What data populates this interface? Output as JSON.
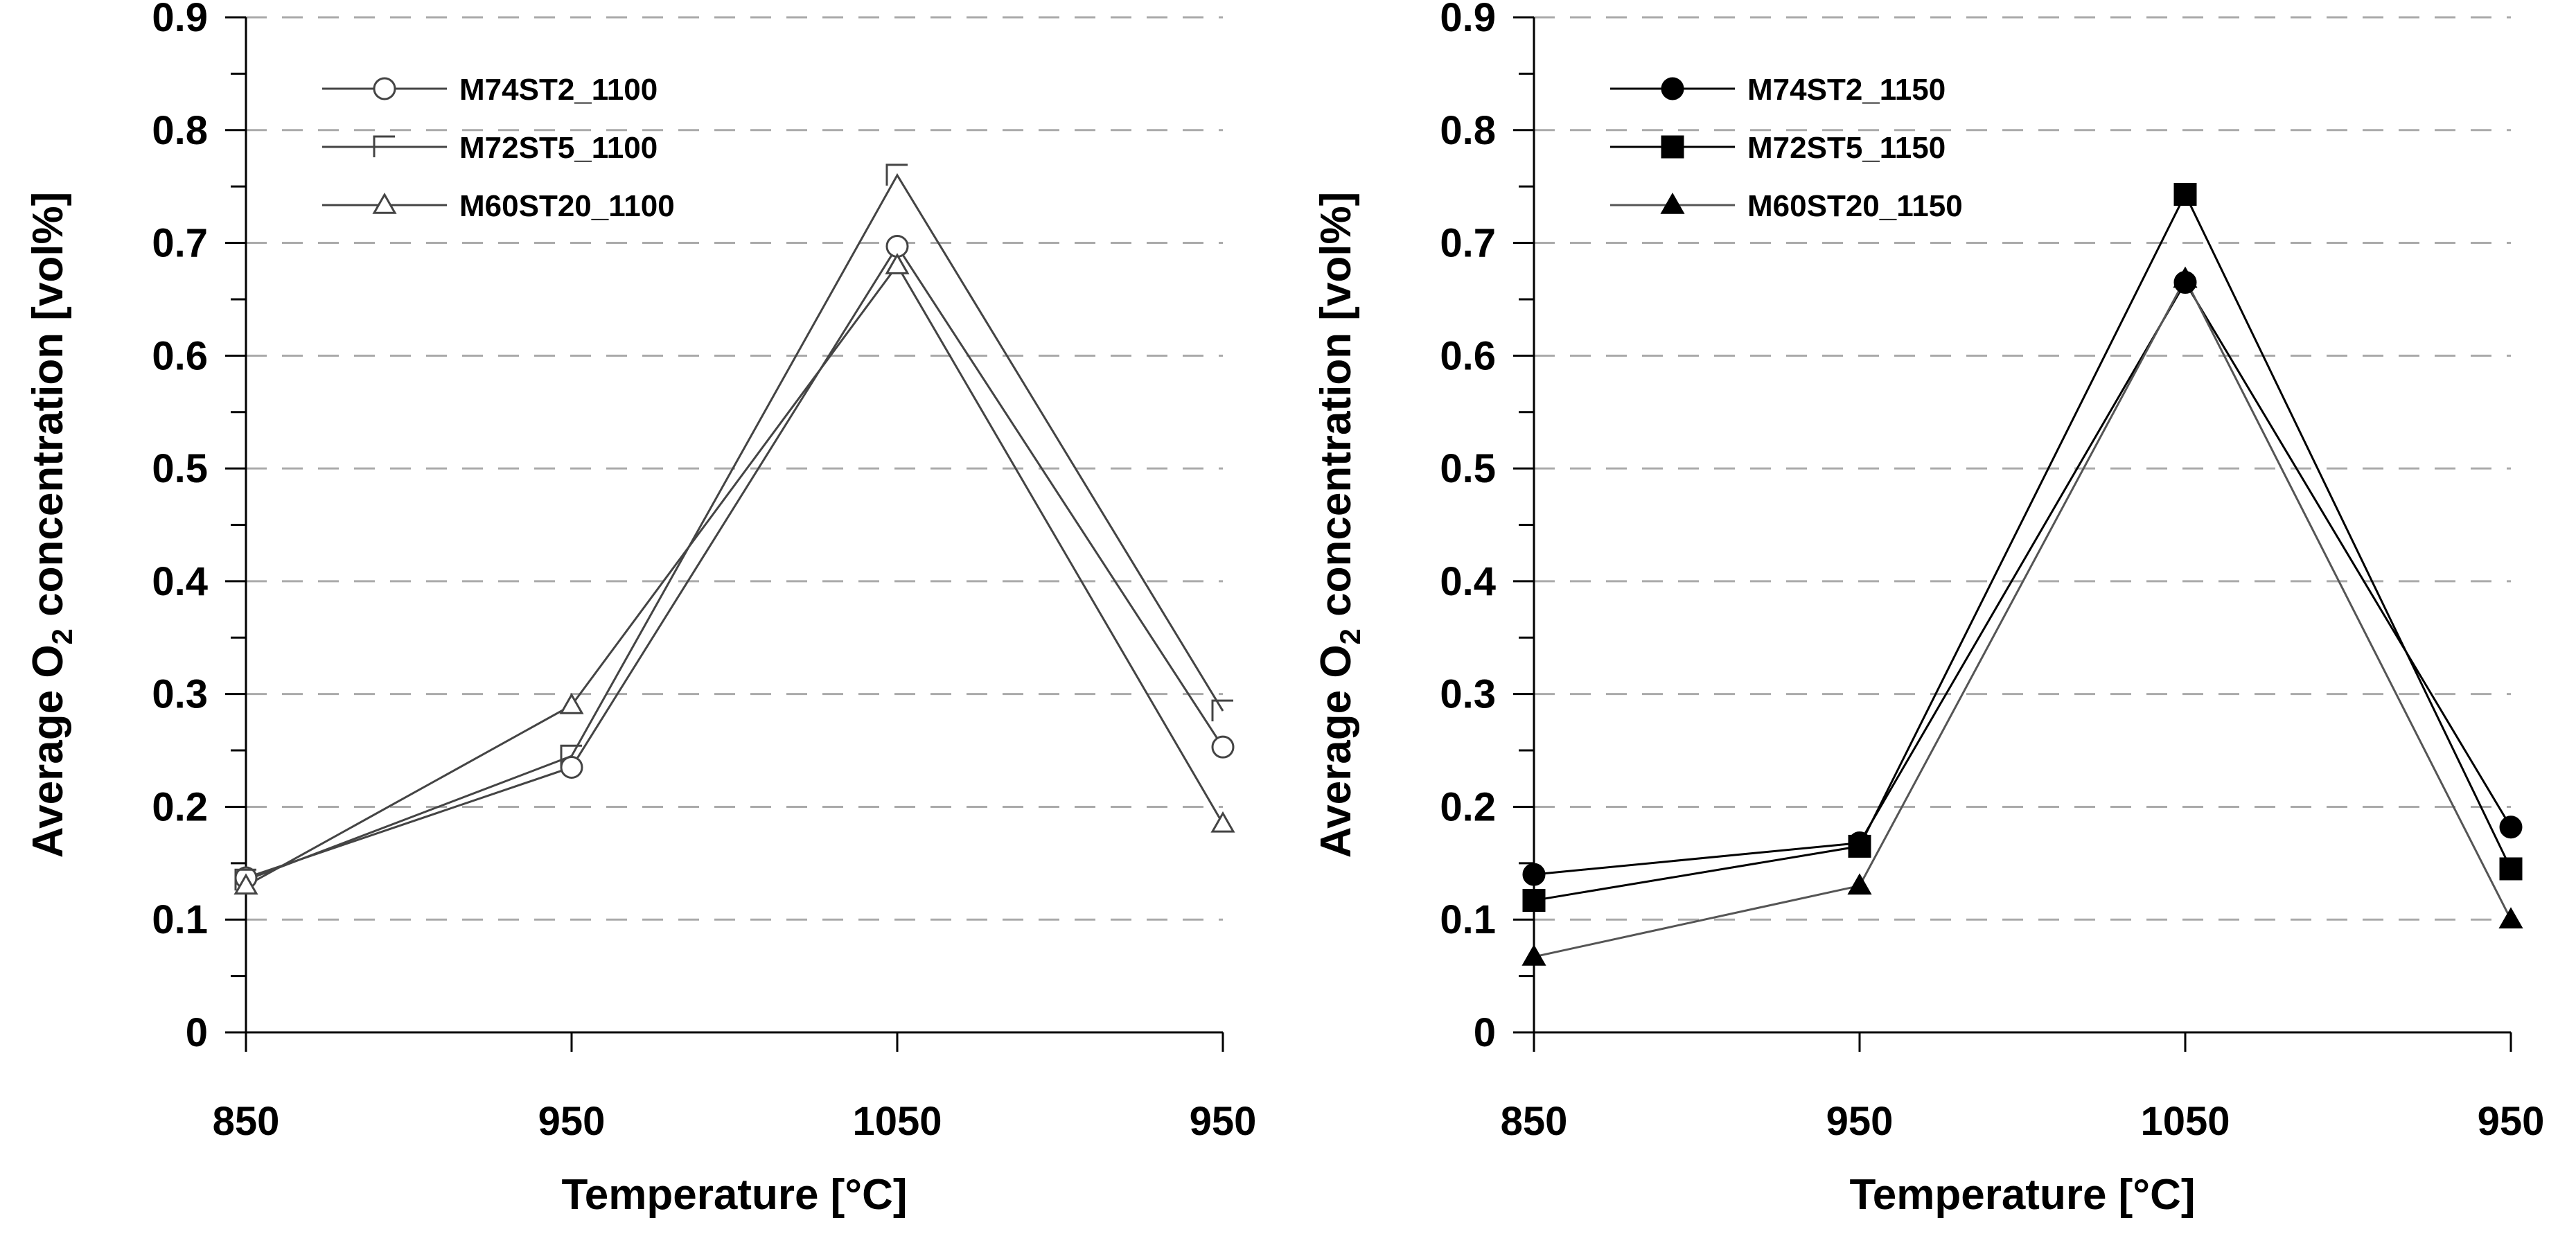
{
  "chart_data": [
    {
      "type": "line",
      "title": "",
      "xlabel": "Temperature [°C]",
      "ylabel_prefix": "Average O",
      "ylabel_subscript": "2",
      "ylabel_suffix": " concentration [vol%]",
      "categories": [
        "850",
        "950",
        "1050",
        "950"
      ],
      "ylim": [
        0,
        0.9
      ],
      "yticks": [
        "0",
        "0.1",
        "0.2",
        "0.3",
        "0.4",
        "0.5",
        "0.6",
        "0.7",
        "0.8",
        "0.9"
      ],
      "grid": "horizontal-dashed",
      "legend_position": "top-left",
      "series": [
        {
          "name": "M74ST2_1100",
          "marker": "circle-open",
          "color": "#444444",
          "values": [
            0.137,
            0.235,
            0.697,
            0.253
          ]
        },
        {
          "name": "M72ST5_1100",
          "marker": "square-open-half",
          "color": "#444444",
          "values": [
            0.135,
            0.245,
            0.76,
            0.285
          ]
        },
        {
          "name": "M60ST20_1100",
          "marker": "triangle-open",
          "color": "#444444",
          "values": [
            0.13,
            0.29,
            0.68,
            0.185
          ]
        }
      ]
    },
    {
      "type": "line",
      "title": "",
      "xlabel": "Temperature [°C]",
      "ylabel_prefix": "Average O",
      "ylabel_subscript": "2",
      "ylabel_suffix": " concentration [vol%]",
      "categories": [
        "850",
        "950",
        "1050",
        "950"
      ],
      "ylim": [
        0,
        0.9
      ],
      "yticks": [
        "0",
        "0.1",
        "0.2",
        "0.3",
        "0.4",
        "0.5",
        "0.6",
        "0.7",
        "0.8",
        "0.9"
      ],
      "grid": "horizontal-dashed",
      "legend_position": "top-left",
      "series": [
        {
          "name": "M74ST2_1150",
          "marker": "circle-filled",
          "color": "#000000",
          "values": [
            0.14,
            0.168,
            0.665,
            0.182
          ]
        },
        {
          "name": "M72ST5_1150",
          "marker": "square-filled",
          "color": "#000000",
          "values": [
            0.117,
            0.165,
            0.743,
            0.145
          ]
        },
        {
          "name": "M60ST20_1150",
          "marker": "triangle-filled",
          "color": "#555555",
          "values": [
            0.067,
            0.13,
            0.668,
            0.1
          ]
        }
      ]
    }
  ]
}
